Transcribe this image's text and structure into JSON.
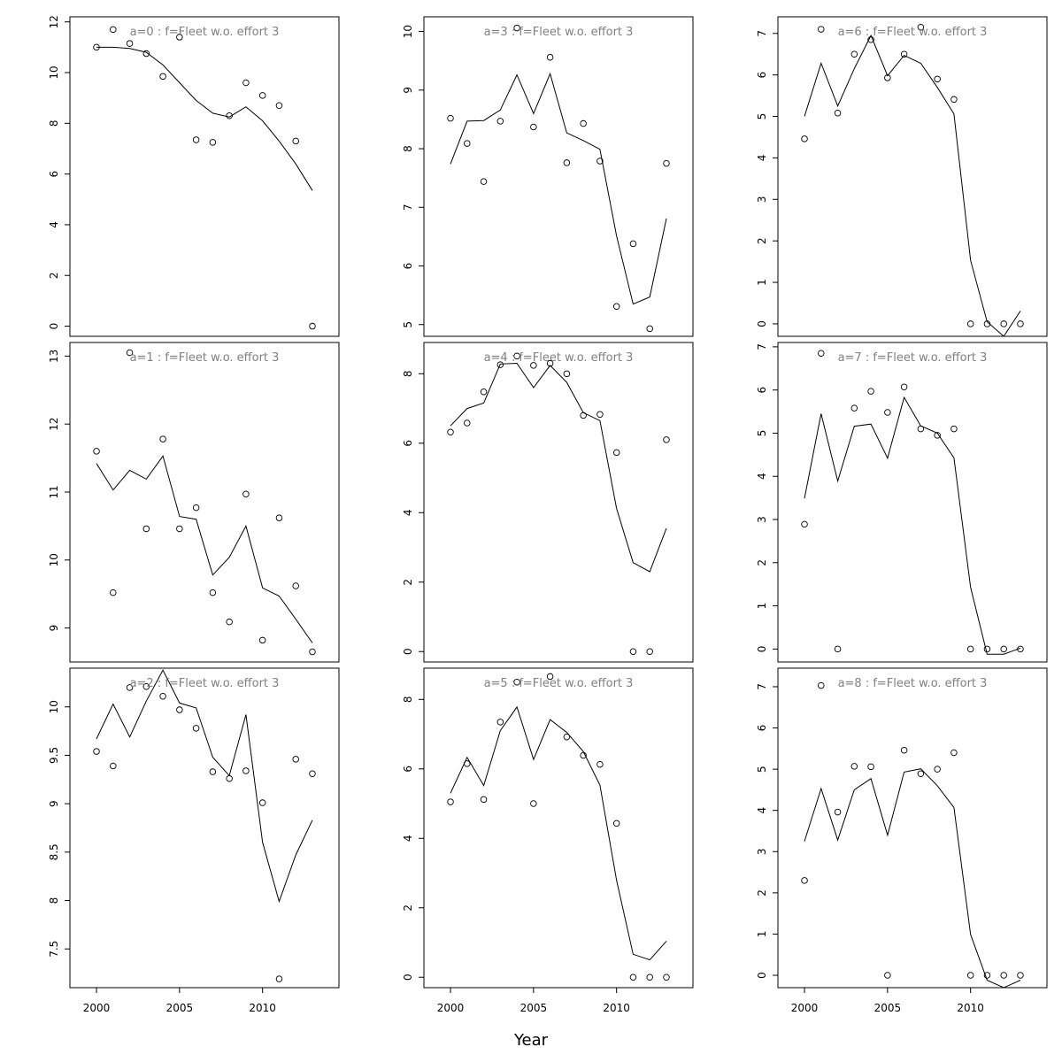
{
  "xlabel": "Year",
  "chart_data": [
    {
      "type": "line",
      "title": "a=0  :  f=Fleet w.o. effort 3",
      "xlim": [
        1998.4,
        2014.6
      ],
      "ylim": [
        -0.4,
        12.2
      ],
      "yticks": [
        0,
        2,
        4,
        6,
        8,
        10,
        12
      ],
      "x": [
        2000,
        2001,
        2002,
        2003,
        2004,
        2005,
        2006,
        2007,
        2008,
        2009,
        2010,
        2011,
        2012,
        2013
      ],
      "observed": [
        11.0,
        11.7,
        11.15,
        10.75,
        9.85,
        11.4,
        7.35,
        7.25,
        8.3,
        9.6,
        9.1,
        8.7,
        7.3,
        0.0
      ],
      "fitted": [
        11.0,
        11.0,
        10.95,
        10.8,
        10.3,
        9.6,
        8.9,
        8.4,
        8.25,
        8.65,
        8.1,
        7.3,
        6.4,
        5.35
      ]
    },
    {
      "type": "line",
      "title": "a=1  :  f=Fleet w.o. effort 3",
      "xlim": [
        1998.4,
        2014.6
      ],
      "ylim": [
        8.5,
        13.2
      ],
      "yticks": [
        9,
        10,
        11,
        12,
        13
      ],
      "x": [
        2000,
        2001,
        2002,
        2003,
        2004,
        2005,
        2006,
        2007,
        2008,
        2009,
        2010,
        2011,
        2012,
        2013
      ],
      "observed": [
        11.6,
        9.52,
        13.05,
        10.46,
        11.78,
        10.46,
        10.77,
        9.52,
        9.09,
        10.97,
        8.82,
        10.62,
        9.62,
        8.65
      ],
      "fitted": [
        11.42,
        11.03,
        11.32,
        11.19,
        11.53,
        10.64,
        10.6,
        9.78,
        10.04,
        10.5,
        9.59,
        9.47,
        9.13,
        8.78
      ]
    },
    {
      "type": "line",
      "title": "a=2  :  f=Fleet w.o. effort 3",
      "xlim": [
        1998.4,
        2014.6
      ],
      "ylim": [
        7.1,
        10.4
      ],
      "yticks": [
        7.5,
        8.0,
        8.5,
        9.0,
        9.5,
        10.0
      ],
      "x": [
        2000,
        2001,
        2002,
        2003,
        2004,
        2005,
        2006,
        2007,
        2008,
        2009,
        2010,
        2011,
        2012,
        2013
      ],
      "observed": [
        9.54,
        9.39,
        10.2,
        10.21,
        10.11,
        9.97,
        9.78,
        9.33,
        9.26,
        9.34,
        9.01,
        7.19,
        9.46,
        9.31
      ],
      "fitted": [
        9.67,
        10.03,
        9.69,
        10.06,
        10.38,
        10.04,
        9.99,
        9.48,
        9.29,
        9.92,
        8.6,
        7.99,
        8.47,
        8.83
      ]
    },
    {
      "type": "line",
      "title": "a=3  :  f=Fleet w.o. effort 3",
      "xlim": [
        1998.4,
        2014.6
      ],
      "ylim": [
        4.8,
        10.25
      ],
      "yticks": [
        5,
        6,
        7,
        8,
        9,
        10
      ],
      "x": [
        2000,
        2001,
        2002,
        2003,
        2004,
        2005,
        2006,
        2007,
        2008,
        2009,
        2010,
        2011,
        2012,
        2013
      ],
      "observed": [
        8.52,
        8.09,
        7.44,
        8.47,
        10.06,
        8.37,
        9.56,
        7.76,
        8.43,
        7.79,
        5.31,
        6.38,
        4.93,
        7.75
      ],
      "fitted": [
        7.74,
        8.47,
        8.48,
        8.66,
        9.26,
        8.6,
        9.28,
        8.27,
        8.14,
        7.99,
        6.51,
        5.35,
        5.47,
        6.81
      ]
    },
    {
      "type": "line",
      "title": "a=4  :  f=Fleet w.o. effort 3",
      "xlim": [
        1998.4,
        2014.6
      ],
      "ylim": [
        -0.3,
        8.9
      ],
      "yticks": [
        0,
        2,
        4,
        6,
        8
      ],
      "x": [
        2000,
        2001,
        2002,
        2003,
        2004,
        2005,
        2006,
        2007,
        2008,
        2009,
        2010,
        2011,
        2012,
        2013
      ],
      "observed": [
        6.32,
        6.58,
        7.48,
        8.26,
        8.51,
        8.24,
        8.3,
        8.0,
        6.8,
        6.83,
        5.73,
        0.0,
        0.0,
        6.1
      ],
      "fitted": [
        6.5,
        7.0,
        7.16,
        8.28,
        8.3,
        7.6,
        8.24,
        7.75,
        6.88,
        6.65,
        4.12,
        2.56,
        2.3,
        3.55
      ]
    },
    {
      "type": "line",
      "title": "a=5  :  f=Fleet w.o. effort 3",
      "xlim": [
        1998.4,
        2014.6
      ],
      "ylim": [
        -0.3,
        8.9
      ],
      "yticks": [
        0,
        2,
        4,
        6,
        8
      ],
      "x": [
        2000,
        2001,
        2002,
        2003,
        2004,
        2005,
        2006,
        2007,
        2008,
        2009,
        2010,
        2011,
        2012,
        2013
      ],
      "observed": [
        5.05,
        6.15,
        5.12,
        7.35,
        8.5,
        5.0,
        8.66,
        6.92,
        6.39,
        6.13,
        4.43,
        0.0,
        0.0,
        0.0
      ],
      "fitted": [
        5.3,
        6.33,
        5.52,
        7.1,
        7.78,
        6.27,
        7.42,
        7.05,
        6.5,
        5.53,
        2.79,
        0.66,
        0.5,
        1.04
      ]
    },
    {
      "type": "line",
      "title": "a=6  :  f=Fleet w.o. effort 3",
      "xlim": [
        1998.4,
        2014.6
      ],
      "ylim": [
        -0.3,
        7.4
      ],
      "yticks": [
        0,
        1,
        2,
        3,
        4,
        5,
        6,
        7
      ],
      "x": [
        2000,
        2001,
        2002,
        2003,
        2004,
        2005,
        2006,
        2007,
        2008,
        2009,
        2010,
        2011,
        2012,
        2013
      ],
      "observed": [
        4.46,
        7.1,
        5.08,
        6.5,
        6.85,
        5.93,
        6.5,
        7.15,
        5.9,
        5.41,
        0.0,
        0.0,
        0.0,
        0.0
      ],
      "fitted": [
        5.0,
        6.28,
        5.25,
        6.15,
        6.95,
        5.98,
        6.47,
        6.28,
        5.7,
        5.06,
        1.53,
        0.05,
        -0.3,
        0.31
      ]
    },
    {
      "type": "line",
      "title": "a=7  :  f=Fleet w.o. effort 3",
      "xlim": [
        1998.4,
        2014.6
      ],
      "ylim": [
        -0.3,
        7.1
      ],
      "yticks": [
        0,
        1,
        2,
        3,
        4,
        5,
        6,
        7
      ],
      "x": [
        2000,
        2001,
        2002,
        2003,
        2004,
        2005,
        2006,
        2007,
        2008,
        2009,
        2010,
        2011,
        2012,
        2013
      ],
      "observed": [
        2.89,
        6.85,
        0.0,
        5.58,
        5.97,
        5.48,
        6.07,
        5.1,
        4.95,
        5.1,
        0.0,
        0.0,
        0.0,
        0.0
      ],
      "fitted": [
        3.49,
        5.45,
        3.89,
        5.16,
        5.21,
        4.42,
        5.83,
        5.17,
        5.0,
        4.43,
        1.43,
        -0.12,
        -0.12,
        0.02
      ]
    },
    {
      "type": "line",
      "title": "a=8  :  f=Fleet w.o. effort 3",
      "xlim": [
        1998.4,
        2014.6
      ],
      "ylim": [
        -0.3,
        7.45
      ],
      "yticks": [
        0,
        1,
        2,
        3,
        4,
        5,
        6,
        7
      ],
      "x": [
        2000,
        2001,
        2002,
        2003,
        2004,
        2005,
        2006,
        2007,
        2008,
        2009,
        2010,
        2011,
        2012,
        2013
      ],
      "observed": [
        2.3,
        7.03,
        3.96,
        5.07,
        5.06,
        0.0,
        5.46,
        4.89,
        5.0,
        5.4,
        0.0,
        0.0,
        0.0,
        0.0
      ],
      "fitted": [
        3.25,
        4.53,
        3.28,
        4.5,
        4.77,
        3.4,
        4.93,
        5.01,
        4.6,
        4.07,
        0.99,
        -0.12,
        -0.3,
        -0.12
      ]
    }
  ],
  "xticks": [
    2000,
    2005,
    2010
  ]
}
